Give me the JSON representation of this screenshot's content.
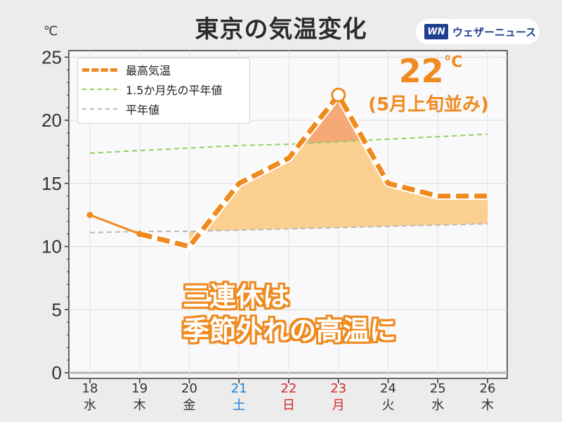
{
  "title": "東京の気温変化",
  "brand": {
    "logo": "WN",
    "name": "ウェザーニュース"
  },
  "y_unit": "℃",
  "highlight": {
    "value": "22",
    "unit": "℃",
    "note": "(5月上旬並み)"
  },
  "annotation": {
    "line1": "三連休は",
    "line2": "季節外れの高温に"
  },
  "legend": {
    "max_temp": "最高気温",
    "month_ahead_normal": "1.5か月先の平年値",
    "normal": "平年値"
  },
  "colors": {
    "max_temp": "#ef8a1e",
    "month_ahead_normal": "#8fcf5a",
    "normal": "#b8b8b8",
    "fill_above": "#fbcf90",
    "fill_peak": "#f7a877",
    "saturday": "#1e80d8",
    "holiday": "#d72b2b"
  },
  "chart_data": {
    "type": "line",
    "title": "東京の気温変化",
    "ylabel": "℃",
    "ylim": [
      0,
      25
    ],
    "yticks": [
      0,
      5,
      10,
      15,
      20,
      25
    ],
    "grid": true,
    "legend_position": "top-left",
    "categories": [
      "18",
      "19",
      "20",
      "21",
      "22",
      "23",
      "24",
      "25",
      "26"
    ],
    "weekdays": [
      "水",
      "木",
      "金",
      "土",
      "日",
      "月",
      "火",
      "水",
      "木"
    ],
    "series": [
      {
        "name": "最高気温",
        "values": [
          12.5,
          11.0,
          10.0,
          15.0,
          17.0,
          22.0,
          15.0,
          14.0,
          14.0
        ]
      },
      {
        "name": "1.5か月先の平年値",
        "values": [
          17.4,
          17.6,
          17.8,
          18.0,
          18.1,
          18.3,
          18.5,
          18.7,
          18.9
        ]
      },
      {
        "name": "平年値",
        "values": [
          11.1,
          11.2,
          11.2,
          11.3,
          11.4,
          11.5,
          11.6,
          11.7,
          11.8
        ]
      }
    ]
  }
}
